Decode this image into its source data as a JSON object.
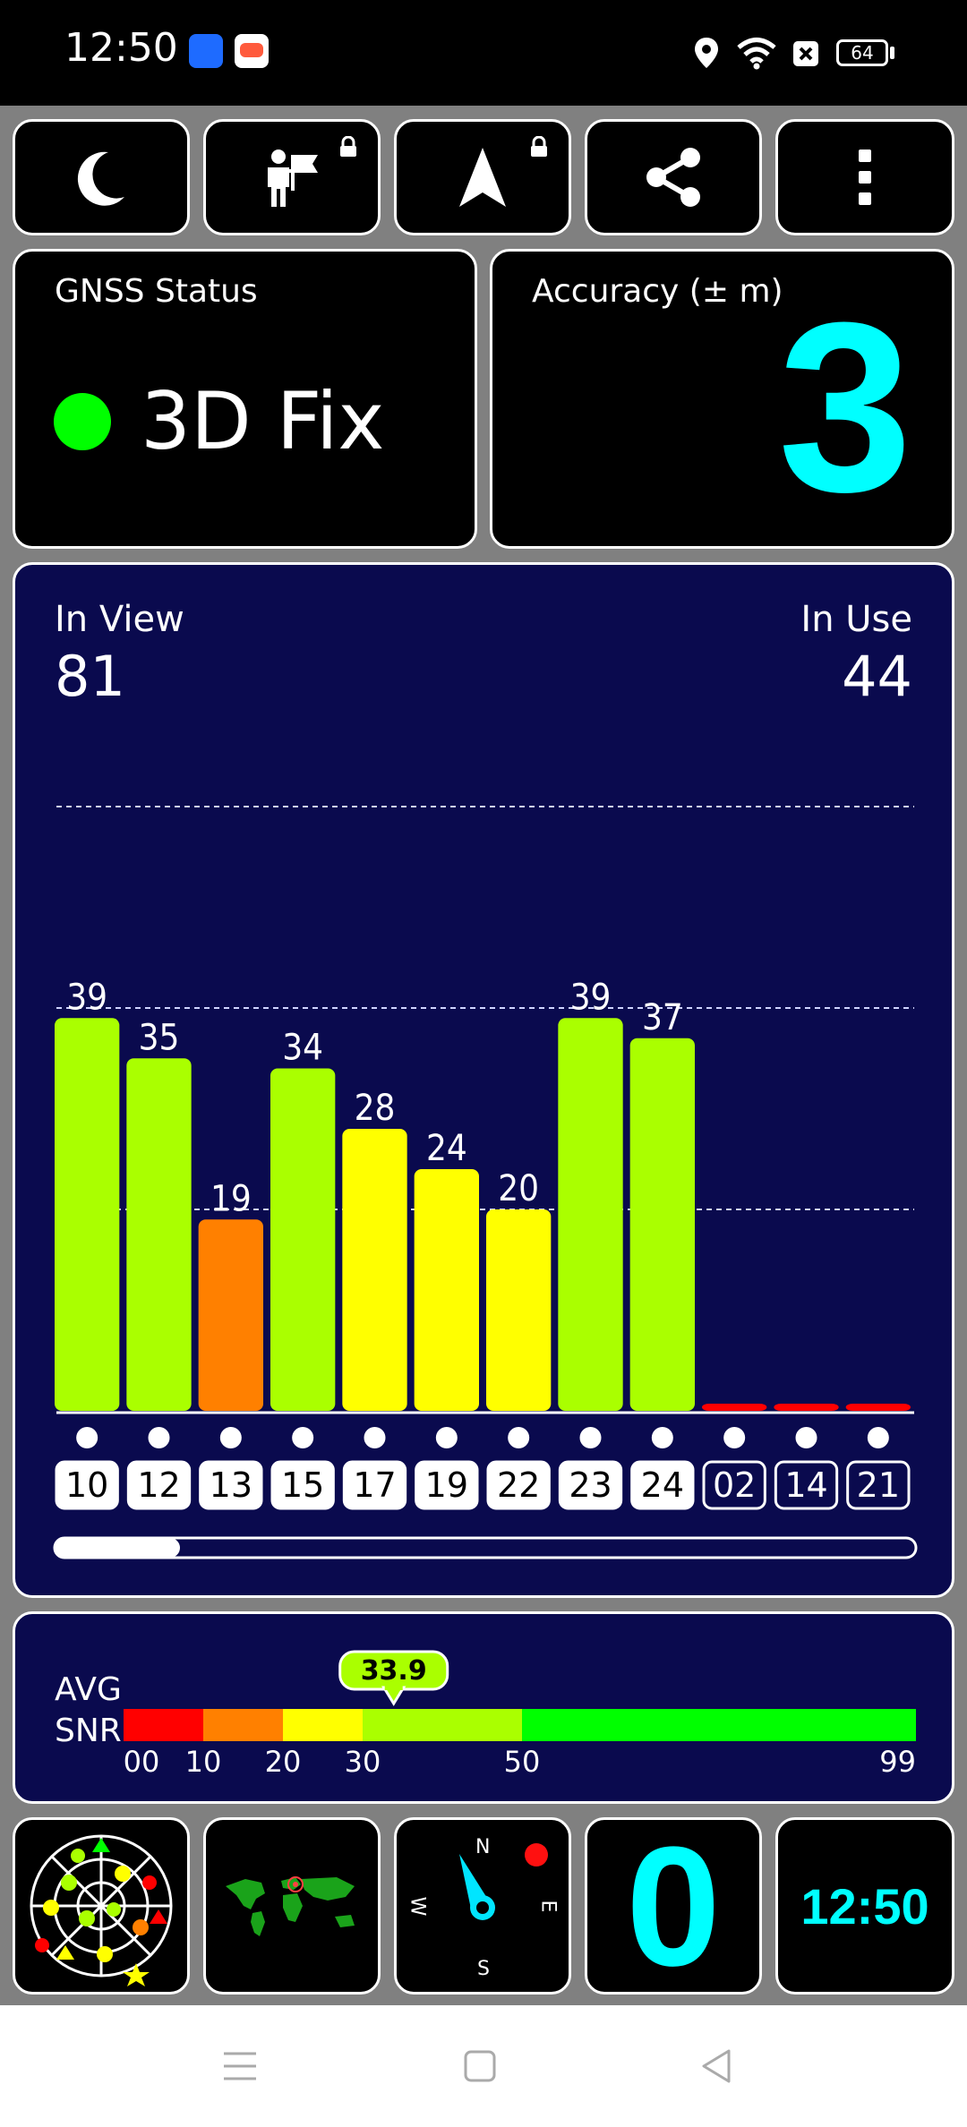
{
  "status_bar": {
    "time": "12:50",
    "battery": "64",
    "icons": [
      "app-badge-blue-icon",
      "app-badge-game-icon",
      "location-icon",
      "wifi-icon",
      "sim-off-icon",
      "battery-icon"
    ]
  },
  "toolbar": {
    "buttons": [
      {
        "name": "night-mode-button",
        "icon": "moon-icon"
      },
      {
        "name": "waypoint-button",
        "icon": "person-flag-icon",
        "locked": true
      },
      {
        "name": "navigate-button",
        "icon": "navigation-arrow-icon",
        "locked": true
      },
      {
        "name": "share-button",
        "icon": "share-icon"
      },
      {
        "name": "more-button",
        "icon": "more-vertical-icon"
      }
    ]
  },
  "gnss": {
    "title": "GNSS Status",
    "value": "3D Fix",
    "status_color": "#00ff00"
  },
  "accuracy": {
    "title": "Accuracy (± m)",
    "value": "3",
    "value_color": "#00ffff"
  },
  "satellites": {
    "in_view_label": "In View",
    "in_view": "81",
    "in_use_label": "In Use",
    "in_use": "44"
  },
  "chart_data": {
    "type": "bar",
    "categories": [
      "10",
      "12",
      "13",
      "15",
      "17",
      "19",
      "22",
      "23",
      "24",
      "02",
      "14",
      "21"
    ],
    "values": [
      39,
      35,
      19,
      34,
      28,
      24,
      20,
      39,
      37,
      0,
      0,
      0
    ],
    "value_labels": [
      "39",
      "35",
      "19",
      "34",
      "28",
      "24",
      "20",
      "39",
      "37",
      "",
      "",
      ""
    ],
    "in_use": [
      true,
      true,
      true,
      true,
      true,
      true,
      true,
      true,
      true,
      false,
      false,
      false
    ],
    "colors": [
      "#aaff00",
      "#aaff00",
      "#ff8000",
      "#aaff00",
      "#ffff00",
      "#ffff00",
      "#ffff00",
      "#aaff00",
      "#aaff00",
      "#ff0000",
      "#ff0000",
      "#ff0000"
    ],
    "ylim": [
      0,
      60
    ],
    "grid_lines": [
      20,
      40,
      60
    ]
  },
  "snr": {
    "label_line1": "AVG",
    "label_line2": "SNR",
    "avg": "33.9",
    "avg_value": 33.9,
    "ticks": [
      "00",
      "10",
      "20",
      "30",
      "50",
      "99"
    ],
    "segments": [
      {
        "from": 0,
        "to": 10,
        "color": "#ff0000"
      },
      {
        "from": 10,
        "to": 20,
        "color": "#ff8000"
      },
      {
        "from": 20,
        "to": 30,
        "color": "#ffff00"
      },
      {
        "from": 30,
        "to": 50,
        "color": "#aaff00"
      },
      {
        "from": 50,
        "to": 99,
        "color": "#00ff00"
      }
    ]
  },
  "bottom": {
    "compass": {
      "n": "N",
      "e": "E",
      "s": "S",
      "w": "W"
    },
    "speed": "0",
    "clock": "12:50"
  }
}
